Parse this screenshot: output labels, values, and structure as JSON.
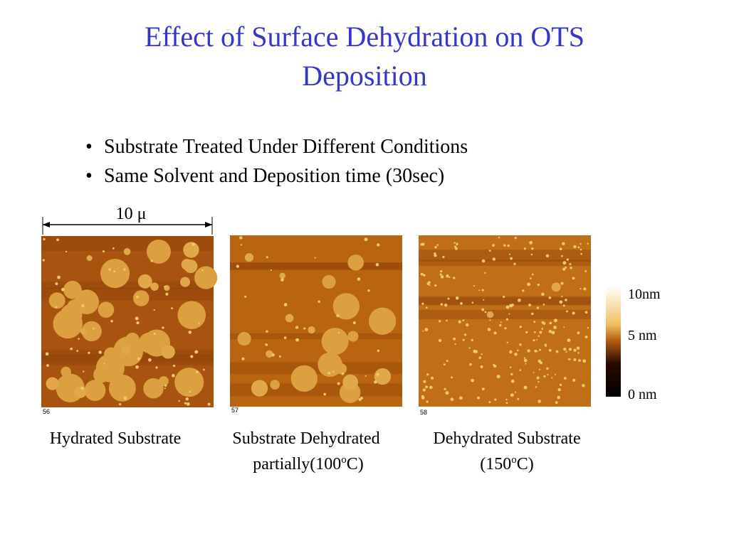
{
  "title": "Effect of Surface Dehydration on OTS Deposition",
  "bullets": [
    "Substrate Treated Under Different Conditions",
    "Same Solvent and Deposition time (30sec)"
  ],
  "scale_label": "10 μ",
  "images": [
    {
      "number": "56"
    },
    {
      "number": "57"
    },
    {
      "number": "58"
    }
  ],
  "colorbar": {
    "top": "10nm",
    "middle": "5 nm",
    "bottom": "0 nm"
  },
  "captions": [
    {
      "line1": "Hydrated Substrate"
    },
    {
      "line1": "Substrate Dehydrated",
      "line2_pre": "partially(100",
      "sup": "o",
      "line2_post": "C)"
    },
    {
      "line2_pre": "Dehydrated Substrate",
      "line3_pre": "(150",
      "sup": "o",
      "line3_post": "C)"
    }
  ]
}
